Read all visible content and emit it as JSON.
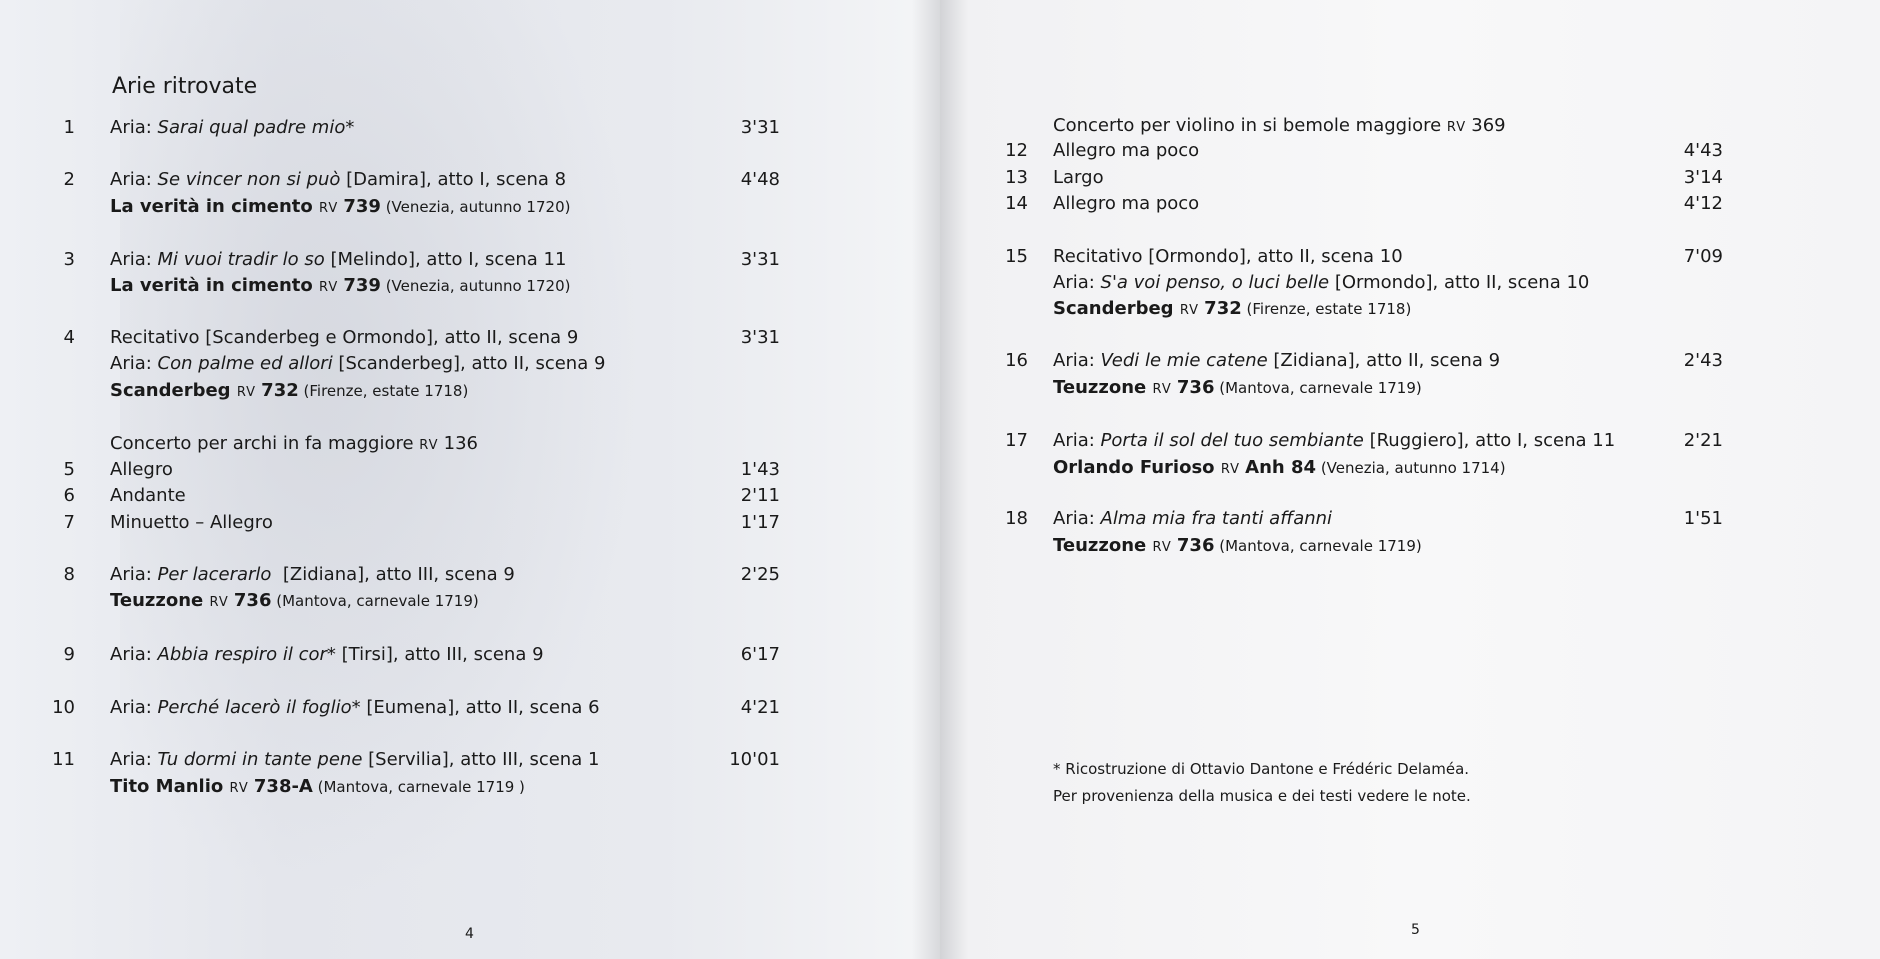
{
  "left_page": {
    "title": "Arie ritrovate",
    "page_number": "4",
    "tracks": [
      {
        "num": "1",
        "dur": "3'31",
        "lines": [
          [
            {
              "t": "Aria: "
            },
            {
              "t": "Sarai qual padre mio*",
              "s": "i"
            }
          ]
        ]
      },
      {
        "num": "2",
        "dur": "4'48",
        "lines": [
          [
            {
              "t": "Aria: "
            },
            {
              "t": "Se vincer non si può",
              "s": "i"
            },
            {
              "t": " [Damira], atto I, scena 8"
            }
          ],
          [
            {
              "t": "La verità in cimento ",
              "s": "b"
            },
            {
              "t": "RV ",
              "s": "sc"
            },
            {
              "t": "739",
              "s": "b"
            },
            {
              "t": " (Venezia, autunno 1720)",
              "s": "sm"
            }
          ]
        ]
      },
      {
        "num": "3",
        "dur": "3'31",
        "lines": [
          [
            {
              "t": "Aria: "
            },
            {
              "t": "Mi vuoi tradir lo so",
              "s": "i"
            },
            {
              "t": " [Melindo], atto I, scena 11"
            }
          ],
          [
            {
              "t": "La verità in cimento ",
              "s": "b"
            },
            {
              "t": "RV ",
              "s": "sc"
            },
            {
              "t": "739",
              "s": "b"
            },
            {
              "t": " (Venezia, autunno 1720)",
              "s": "sm"
            }
          ]
        ]
      },
      {
        "num": "4",
        "dur": "3'31",
        "lines": [
          [
            {
              "t": "Recitativo [Scanderbeg e Ormondo], atto II, scena 9"
            }
          ],
          [
            {
              "t": "Aria: "
            },
            {
              "t": "Con palme ed allori",
              "s": "i"
            },
            {
              "t": " [Scanderbeg], atto II, scena 9"
            }
          ],
          [
            {
              "t": "Scanderbeg ",
              "s": "b"
            },
            {
              "t": "RV ",
              "s": "sc"
            },
            {
              "t": "732",
              "s": "b"
            },
            {
              "t": " (Firenze, estate 1718)",
              "s": "sm"
            }
          ]
        ]
      },
      {
        "num": "",
        "dur": "",
        "lines": [
          [
            {
              "t": "Concerto per archi in fa maggiore "
            },
            {
              "t": "RV ",
              "s": "sc"
            },
            {
              "t": "136"
            }
          ]
        ]
      },
      {
        "num": "5",
        "dur": "1'43",
        "lines": [
          [
            {
              "t": "Allegro"
            }
          ]
        ]
      },
      {
        "num": "6",
        "dur": "2'11",
        "lines": [
          [
            {
              "t": "Andante"
            }
          ]
        ]
      },
      {
        "num": "7",
        "dur": "1'17",
        "lines": [
          [
            {
              "t": "Minuetto – Allegro"
            }
          ]
        ]
      },
      {
        "num": "8",
        "dur": "2'25",
        "lines": [
          [
            {
              "t": "Aria: "
            },
            {
              "t": "Per lacerarlo",
              "s": "i"
            },
            {
              "t": "  [Zidiana], atto III, scena 9"
            }
          ],
          [
            {
              "t": "Teuzzone ",
              "s": "b"
            },
            {
              "t": "RV ",
              "s": "sc"
            },
            {
              "t": "736",
              "s": "b"
            },
            {
              "t": " (Mantova, carnevale 1719)",
              "s": "sm"
            }
          ]
        ]
      },
      {
        "num": "9",
        "dur": "6'17",
        "lines": [
          [
            {
              "t": "Aria: "
            },
            {
              "t": "Abbia respiro il cor*",
              "s": "i"
            },
            {
              "t": " [Tirsi], atto III, scena 9"
            }
          ]
        ]
      },
      {
        "num": "10",
        "dur": "4'21",
        "lines": [
          [
            {
              "t": "Aria: "
            },
            {
              "t": "Perché lacerò il foglio*",
              "s": "i"
            },
            {
              "t": " [Eumena], atto II, scena 6"
            }
          ]
        ]
      },
      {
        "num": "11",
        "dur": "10'01",
        "lines": [
          [
            {
              "t": "Aria: "
            },
            {
              "t": "Tu dormi in tante pene",
              "s": "i"
            },
            {
              "t": " [Servilia], atto III, scena 1"
            }
          ],
          [
            {
              "t": "Tito Manlio ",
              "s": "b"
            },
            {
              "t": "RV ",
              "s": "sc"
            },
            {
              "t": "738-A",
              "s": "b"
            },
            {
              "t": " (Mantova, carnevale 1719 )",
              "s": "sm"
            }
          ]
        ]
      }
    ]
  },
  "right_page": {
    "page_number": "5",
    "tracks": [
      {
        "num": "",
        "dur": "",
        "lines": [
          [
            {
              "t": "Concerto per violino in si bemole maggiore "
            },
            {
              "t": "RV ",
              "s": "sc"
            },
            {
              "t": "369"
            }
          ]
        ]
      },
      {
        "num": "12",
        "dur": "4'43",
        "lines": [
          [
            {
              "t": "Allegro ma poco"
            }
          ]
        ]
      },
      {
        "num": "13",
        "dur": "3'14",
        "lines": [
          [
            {
              "t": "Largo"
            }
          ]
        ]
      },
      {
        "num": "14",
        "dur": "4'12",
        "lines": [
          [
            {
              "t": "Allegro ma poco"
            }
          ]
        ]
      },
      {
        "num": "15",
        "dur": "7'09",
        "lines": [
          [
            {
              "t": "Recitativo [Ormondo], atto II, scena 10"
            }
          ],
          [
            {
              "t": "Aria: "
            },
            {
              "t": "S'a voi penso, o luci belle",
              "s": "i"
            },
            {
              "t": " [Ormondo], atto II, scena 10"
            }
          ],
          [
            {
              "t": "Scanderbeg ",
              "s": "b"
            },
            {
              "t": "RV ",
              "s": "sc"
            },
            {
              "t": "732",
              "s": "b"
            },
            {
              "t": " (Firenze, estate 1718)",
              "s": "sm"
            }
          ]
        ]
      },
      {
        "num": "16",
        "dur": "2'43",
        "lines": [
          [
            {
              "t": "Aria: "
            },
            {
              "t": "Vedi le mie catene",
              "s": "i"
            },
            {
              "t": " [Zidiana], atto II, scena 9"
            }
          ],
          [
            {
              "t": "Teuzzone ",
              "s": "b"
            },
            {
              "t": "RV ",
              "s": "sc"
            },
            {
              "t": "736",
              "s": "b"
            },
            {
              "t": " (Mantova, carnevale 1719)",
              "s": "sm"
            }
          ]
        ]
      },
      {
        "num": "17",
        "dur": "2'21",
        "lines": [
          [
            {
              "t": "Aria: "
            },
            {
              "t": "Porta il sol del tuo sembiante",
              "s": "i"
            },
            {
              "t": " [Ruggiero], atto I, scena 11"
            }
          ],
          [
            {
              "t": "Orlando Furioso ",
              "s": "b"
            },
            {
              "t": "RV ",
              "s": "sc"
            },
            {
              "t": "Anh 84",
              "s": "b"
            },
            {
              "t": " (Venezia, autunno 1714)",
              "s": "sm"
            }
          ]
        ]
      },
      {
        "num": "18",
        "dur": "1'51",
        "lines": [
          [
            {
              "t": "Aria: "
            },
            {
              "t": "Alma mia fra tanti affanni",
              "s": "i"
            }
          ],
          [
            {
              "t": "Teuzzone ",
              "s": "b"
            },
            {
              "t": "RV ",
              "s": "sc"
            },
            {
              "t": "736",
              "s": "b"
            },
            {
              "t": " (Mantova, carnevale 1719)",
              "s": "sm"
            }
          ]
        ]
      }
    ],
    "footnotes": [
      "* Ricostruzione di Ottavio Dantone e Frédéric Delaméa.",
      "Per provenienza della musica e dei testi vedere le note."
    ]
  }
}
